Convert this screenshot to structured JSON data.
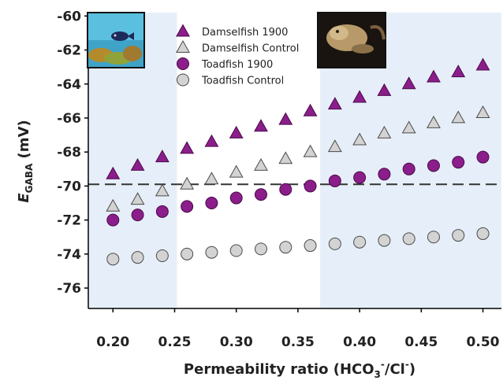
{
  "chart_data": {
    "type": "scatter",
    "xlabel": "Permeability ratio (HCO₃⁻/Cl⁻)",
    "ylabel": "E_GABA (mV)",
    "ylabel_main": "E",
    "ylabel_sub": "GABA",
    "ylabel_unit": " (mV)",
    "xlabel_main": "Permeability ratio (HCO",
    "xlabel_sub": "3",
    "xlabel_sup1": "-",
    "xlabel_mid": "/Cl",
    "xlabel_sup2": "-",
    "xlabel_end": ")",
    "xlim": [
      0.18,
      0.515
    ],
    "ylim": [
      -77.2,
      -59.8
    ],
    "xticks": [
      0.2,
      0.25,
      0.3,
      0.35,
      0.4,
      0.45,
      0.5
    ],
    "xtick_labels": [
      "0.20",
      "0.25",
      "0.30",
      "0.35",
      "0.40",
      "0.45",
      "0.50"
    ],
    "yticks": [
      -60,
      -62,
      -64,
      -66,
      -68,
      -70,
      -72,
      -74,
      -76
    ],
    "ytick_labels": [
      "-60",
      "-62",
      "-64",
      "-66",
      "-68",
      "-70",
      "-72",
      "-74",
      "-76"
    ],
    "reference_line_y": -69.9,
    "shaded_x_ranges": [
      [
        0.18,
        0.252
      ],
      [
        0.368,
        0.515
      ]
    ],
    "grid": false,
    "legend_position": "top-center",
    "x": [
      0.2,
      0.22,
      0.24,
      0.26,
      0.28,
      0.3,
      0.32,
      0.34,
      0.36,
      0.38,
      0.4,
      0.42,
      0.44,
      0.46,
      0.48,
      0.5
    ],
    "series": [
      {
        "name": "Damselfish 1900",
        "marker": "triangle",
        "color": "#8B1E8B",
        "values": [
          -69.3,
          -68.8,
          -68.3,
          -67.8,
          -67.4,
          -66.9,
          -66.5,
          -66.1,
          -65.6,
          -65.2,
          -64.8,
          -64.4,
          -64.0,
          -63.6,
          -63.3,
          -62.9
        ]
      },
      {
        "name": "Damselfish Control",
        "marker": "triangle",
        "color": "#D3D3D3",
        "values": [
          -71.2,
          -70.8,
          -70.3,
          -69.9,
          -69.6,
          -69.2,
          -68.8,
          -68.4,
          -68.0,
          -67.7,
          -67.3,
          -66.9,
          -66.6,
          -66.3,
          -66.0,
          -65.7
        ]
      },
      {
        "name": "Toadfish 1900",
        "marker": "circle",
        "color": "#8B1E8B",
        "values": [
          -72.0,
          -71.7,
          -71.5,
          -71.2,
          -71.0,
          -70.7,
          -70.5,
          -70.2,
          -70.0,
          -69.7,
          -69.5,
          -69.3,
          -69.0,
          -68.8,
          -68.6,
          -68.3
        ]
      },
      {
        "name": "Toadfish Control",
        "marker": "circle",
        "color": "#D3D3D3",
        "values": [
          -74.3,
          -74.2,
          -74.1,
          -74.0,
          -73.9,
          -73.8,
          -73.7,
          -73.6,
          -73.5,
          -73.4,
          -73.3,
          -73.2,
          -73.1,
          -73.0,
          -72.9,
          -72.8
        ]
      }
    ]
  },
  "photos": {
    "damselfish_label": "damselfish photo",
    "toadfish_label": "toadfish photo"
  },
  "colors": {
    "shade": "#E6EFF9",
    "purple_edge": "#4A0A4A",
    "grey_edge": "#4A4A4A",
    "dash": "#333333"
  }
}
